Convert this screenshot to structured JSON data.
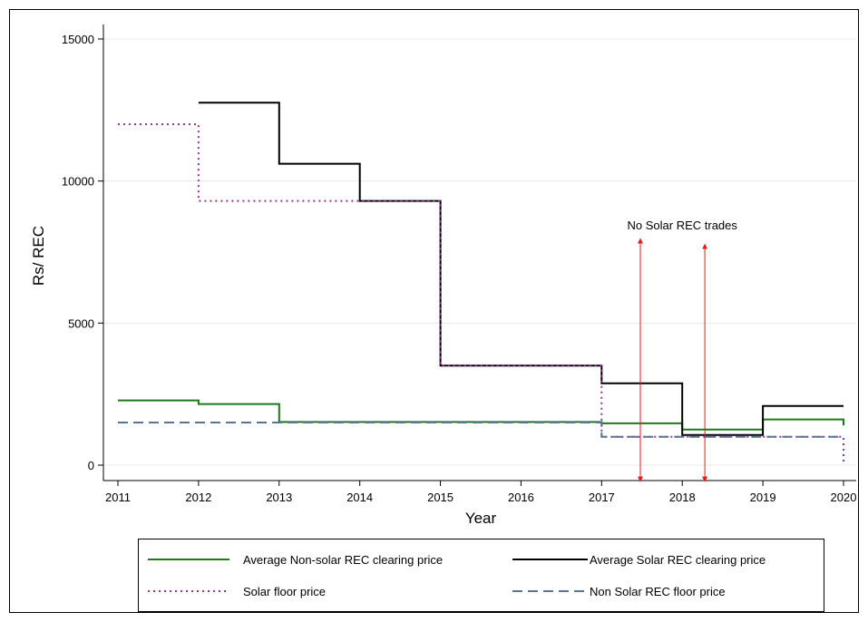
{
  "chart_data": {
    "type": "line",
    "step": true,
    "xlabel": "Year",
    "ylabel": "Rs/ REC",
    "xlim": [
      2011,
      2020
    ],
    "ylim": [
      0,
      15000
    ],
    "x_ticks": [
      "2011",
      "2012",
      "2013",
      "2014",
      "2015",
      "2016",
      "2017",
      "2018",
      "2019",
      "2020"
    ],
    "y_ticks": [
      "0",
      "5000",
      "10000",
      "15000"
    ],
    "grid": true,
    "legend_position": "bottom",
    "series": [
      {
        "name": "Average Non-solar REC clearing price",
        "color": "#1a7a1a",
        "style": "solid",
        "points": [
          [
            2011,
            2280
          ],
          [
            2012,
            2280
          ],
          [
            2012,
            2150
          ],
          [
            2013,
            2150
          ],
          [
            2013,
            1520
          ],
          [
            2017,
            1520
          ],
          [
            2017,
            1470
          ],
          [
            2018,
            1470
          ],
          [
            2018,
            1250
          ],
          [
            2019,
            1250
          ],
          [
            2019,
            1610
          ],
          [
            2020,
            1610
          ],
          [
            2020,
            1400
          ]
        ]
      },
      {
        "name": "Average Solar  REC clearing price",
        "color": "#000000",
        "style": "solid",
        "points": [
          [
            2012,
            12760
          ],
          [
            2013,
            12760
          ],
          [
            2013,
            10610
          ],
          [
            2014,
            10610
          ],
          [
            2014,
            9300
          ],
          [
            2015,
            9300
          ],
          [
            2015,
            3500
          ],
          [
            2017,
            3500
          ],
          [
            2017,
            2880
          ],
          [
            2018,
            2880
          ],
          [
            2018,
            1060
          ],
          [
            2019,
            1060
          ],
          [
            2019,
            2080
          ],
          [
            2020,
            2080
          ]
        ]
      },
      {
        "name": "Solar floor price",
        "color": "#993399",
        "style": "dotted",
        "points": [
          [
            2011,
            12000
          ],
          [
            2012,
            12000
          ],
          [
            2012,
            9300
          ],
          [
            2015,
            9300
          ],
          [
            2015,
            3500
          ],
          [
            2017,
            3500
          ],
          [
            2017,
            1000
          ],
          [
            2020,
            1000
          ],
          [
            2020,
            0
          ]
        ]
      },
      {
        "name": "Non Solar REC floor price",
        "color": "#5a7590",
        "style": "dashed",
        "points": [
          [
            2011,
            1500
          ],
          [
            2017,
            1500
          ],
          [
            2017,
            1000
          ],
          [
            2020,
            1000
          ]
        ]
      }
    ],
    "annotations": [
      {
        "text": "No Solar REC trades",
        "x": 2018.0,
        "y": 8300
      },
      {
        "arrow_x": 2017.48,
        "y_from": -500,
        "y_to": 7900
      },
      {
        "arrow_x": 2018.28,
        "y_from": -500,
        "y_to": 7700
      }
    ]
  }
}
